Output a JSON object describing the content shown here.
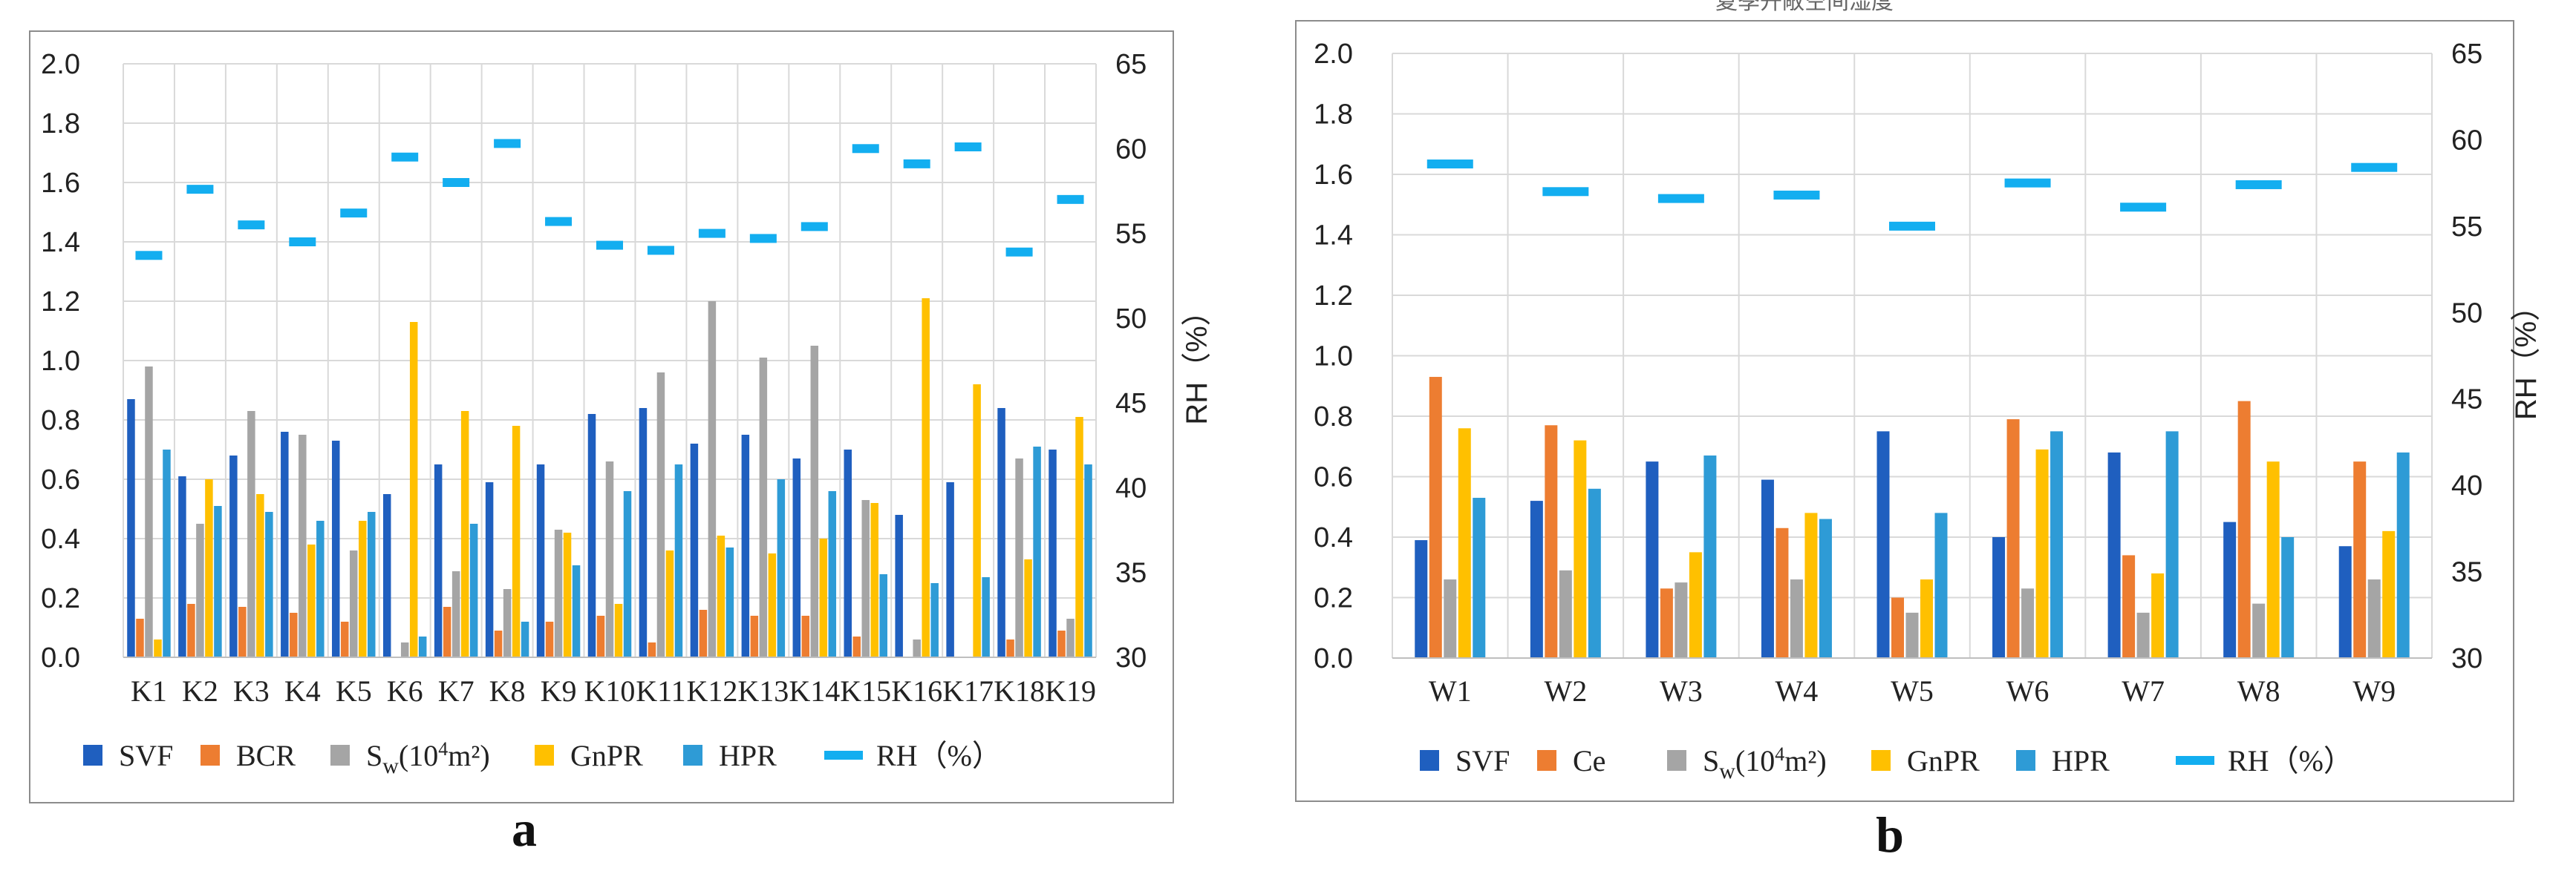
{
  "chart_data": [
    {
      "panel_label": "a",
      "type": "bar",
      "categories": [
        "K1",
        "K2",
        "K3",
        "K4",
        "K5",
        "K6",
        "K7",
        "K8",
        "K9",
        "K10",
        "K11",
        "K12",
        "K13",
        "K14",
        "K15",
        "K16",
        "K17",
        "K18",
        "K19"
      ],
      "series": [
        {
          "name": "SVF",
          "axis": "left",
          "color": "#1f5fbf",
          "values": [
            0.87,
            0.61,
            0.68,
            0.76,
            0.73,
            0.55,
            0.65,
            0.59,
            0.65,
            0.82,
            0.84,
            0.72,
            0.75,
            0.67,
            0.7,
            0.48,
            0.59,
            0.84,
            0.7
          ]
        },
        {
          "name": "BCR",
          "axis": "left",
          "color": "#ed7d31",
          "values": [
            0.13,
            0.18,
            0.17,
            0.15,
            0.12,
            0.0,
            0.17,
            0.09,
            0.12,
            0.14,
            0.05,
            0.16,
            0.14,
            0.14,
            0.07,
            0.0,
            0.0,
            0.06,
            0.09
          ]
        },
        {
          "name": "Sw(10⁴m²)",
          "axis": "left",
          "color": "#a5a5a5",
          "values": [
            0.98,
            0.45,
            0.83,
            0.75,
            0.36,
            0.05,
            0.29,
            0.23,
            0.43,
            0.66,
            0.96,
            1.2,
            1.01,
            1.05,
            0.53,
            0.06,
            0.0,
            0.67,
            0.13
          ]
        },
        {
          "name": "GnPR",
          "axis": "left",
          "color": "#ffc000",
          "values": [
            0.06,
            0.6,
            0.55,
            0.38,
            0.46,
            1.13,
            0.83,
            0.78,
            0.42,
            0.18,
            0.36,
            0.41,
            0.35,
            0.4,
            0.52,
            1.21,
            0.92,
            0.33,
            0.81
          ]
        },
        {
          "name": "HPR",
          "axis": "left",
          "color": "#2e9bd6",
          "values": [
            0.7,
            0.51,
            0.49,
            0.46,
            0.49,
            0.07,
            0.45,
            0.12,
            0.31,
            0.56,
            0.65,
            0.37,
            0.6,
            0.56,
            0.28,
            0.25,
            0.27,
            0.71,
            0.65
          ]
        },
        {
          "name": "RH（%）",
          "axis": "right",
          "type": "dash",
          "color": "#13aef0",
          "values": [
            53.7,
            57.6,
            55.5,
            54.5,
            56.2,
            59.5,
            58.0,
            60.3,
            55.7,
            54.3,
            54.0,
            55.0,
            54.7,
            55.4,
            60.0,
            59.1,
            60.1,
            53.9,
            57.0
          ]
        }
      ],
      "legend_labels": [
        {
          "name": "SVF"
        },
        {
          "name": "BCR"
        },
        {
          "main": "S",
          "sub": "w",
          "rest": "(10",
          "sup": "4",
          "tail": "m²)"
        },
        {
          "name": "GnPR"
        },
        {
          "name": "HPR"
        },
        {
          "name": "RH（%）"
        }
      ],
      "ylim": [
        0,
        2.0
      ],
      "y_ticks": [
        "0.0",
        "0.2",
        "0.4",
        "0.6",
        "0.8",
        "1.0",
        "1.2",
        "1.4",
        "1.6",
        "1.8",
        "2.0"
      ],
      "y2lim": [
        30,
        65
      ],
      "y2_ticks": [
        "30",
        "35",
        "40",
        "45",
        "50",
        "55",
        "60",
        "65"
      ],
      "y2label": "RH（%）",
      "grid": true,
      "legend_position": "bottom"
    },
    {
      "panel_label": "b",
      "type": "bar",
      "categories": [
        "W1",
        "W2",
        "W3",
        "W4",
        "W5",
        "W6",
        "W7",
        "W8",
        "W9"
      ],
      "series": [
        {
          "name": "SVF",
          "axis": "left",
          "color": "#1f5fbf",
          "values": [
            0.39,
            0.52,
            0.65,
            0.59,
            0.75,
            0.4,
            0.68,
            0.45,
            0.37
          ]
        },
        {
          "name": "Ce",
          "axis": "left",
          "color": "#ed7d31",
          "values": [
            0.93,
            0.77,
            0.23,
            0.43,
            0.2,
            0.79,
            0.34,
            0.85,
            0.65
          ]
        },
        {
          "name": "Sw(10⁴m²)",
          "axis": "left",
          "color": "#a5a5a5",
          "values": [
            0.26,
            0.29,
            0.25,
            0.26,
            0.15,
            0.23,
            0.15,
            0.18,
            0.26
          ]
        },
        {
          "name": "GnPR",
          "axis": "left",
          "color": "#ffc000",
          "values": [
            0.76,
            0.72,
            0.35,
            0.48,
            0.26,
            0.69,
            0.28,
            0.65,
            0.42
          ]
        },
        {
          "name": "HPR",
          "axis": "left",
          "color": "#2e9bd6",
          "values": [
            0.53,
            0.56,
            0.67,
            0.46,
            0.48,
            0.75,
            0.75,
            0.4,
            0.68
          ]
        },
        {
          "name": "RH（%）",
          "axis": "right",
          "type": "dash",
          "color": "#13aef0",
          "values": [
            58.6,
            57.0,
            56.6,
            56.8,
            55.0,
            57.5,
            56.1,
            57.4,
            58.4
          ]
        }
      ],
      "legend_labels": [
        {
          "name": "SVF"
        },
        {
          "name": "Ce"
        },
        {
          "main": "S",
          "sub": "w",
          "rest": "(10",
          "sup": "4",
          "tail": "m²)"
        },
        {
          "name": "GnPR"
        },
        {
          "name": "HPR"
        },
        {
          "name": "RH（%）"
        }
      ],
      "ylim": [
        0,
        2.0
      ],
      "y_ticks": [
        "0.0",
        "0.2",
        "0.4",
        "0.6",
        "0.8",
        "1.0",
        "1.2",
        "1.4",
        "1.6",
        "1.8",
        "2.0"
      ],
      "y2lim": [
        30,
        65
      ],
      "y2_ticks": [
        "30",
        "35",
        "40",
        "45",
        "50",
        "55",
        "60",
        "65"
      ],
      "y2label": "RH（%）",
      "grid": true,
      "legend_position": "bottom",
      "cut_title": "夏季开敞空间湿度"
    }
  ]
}
